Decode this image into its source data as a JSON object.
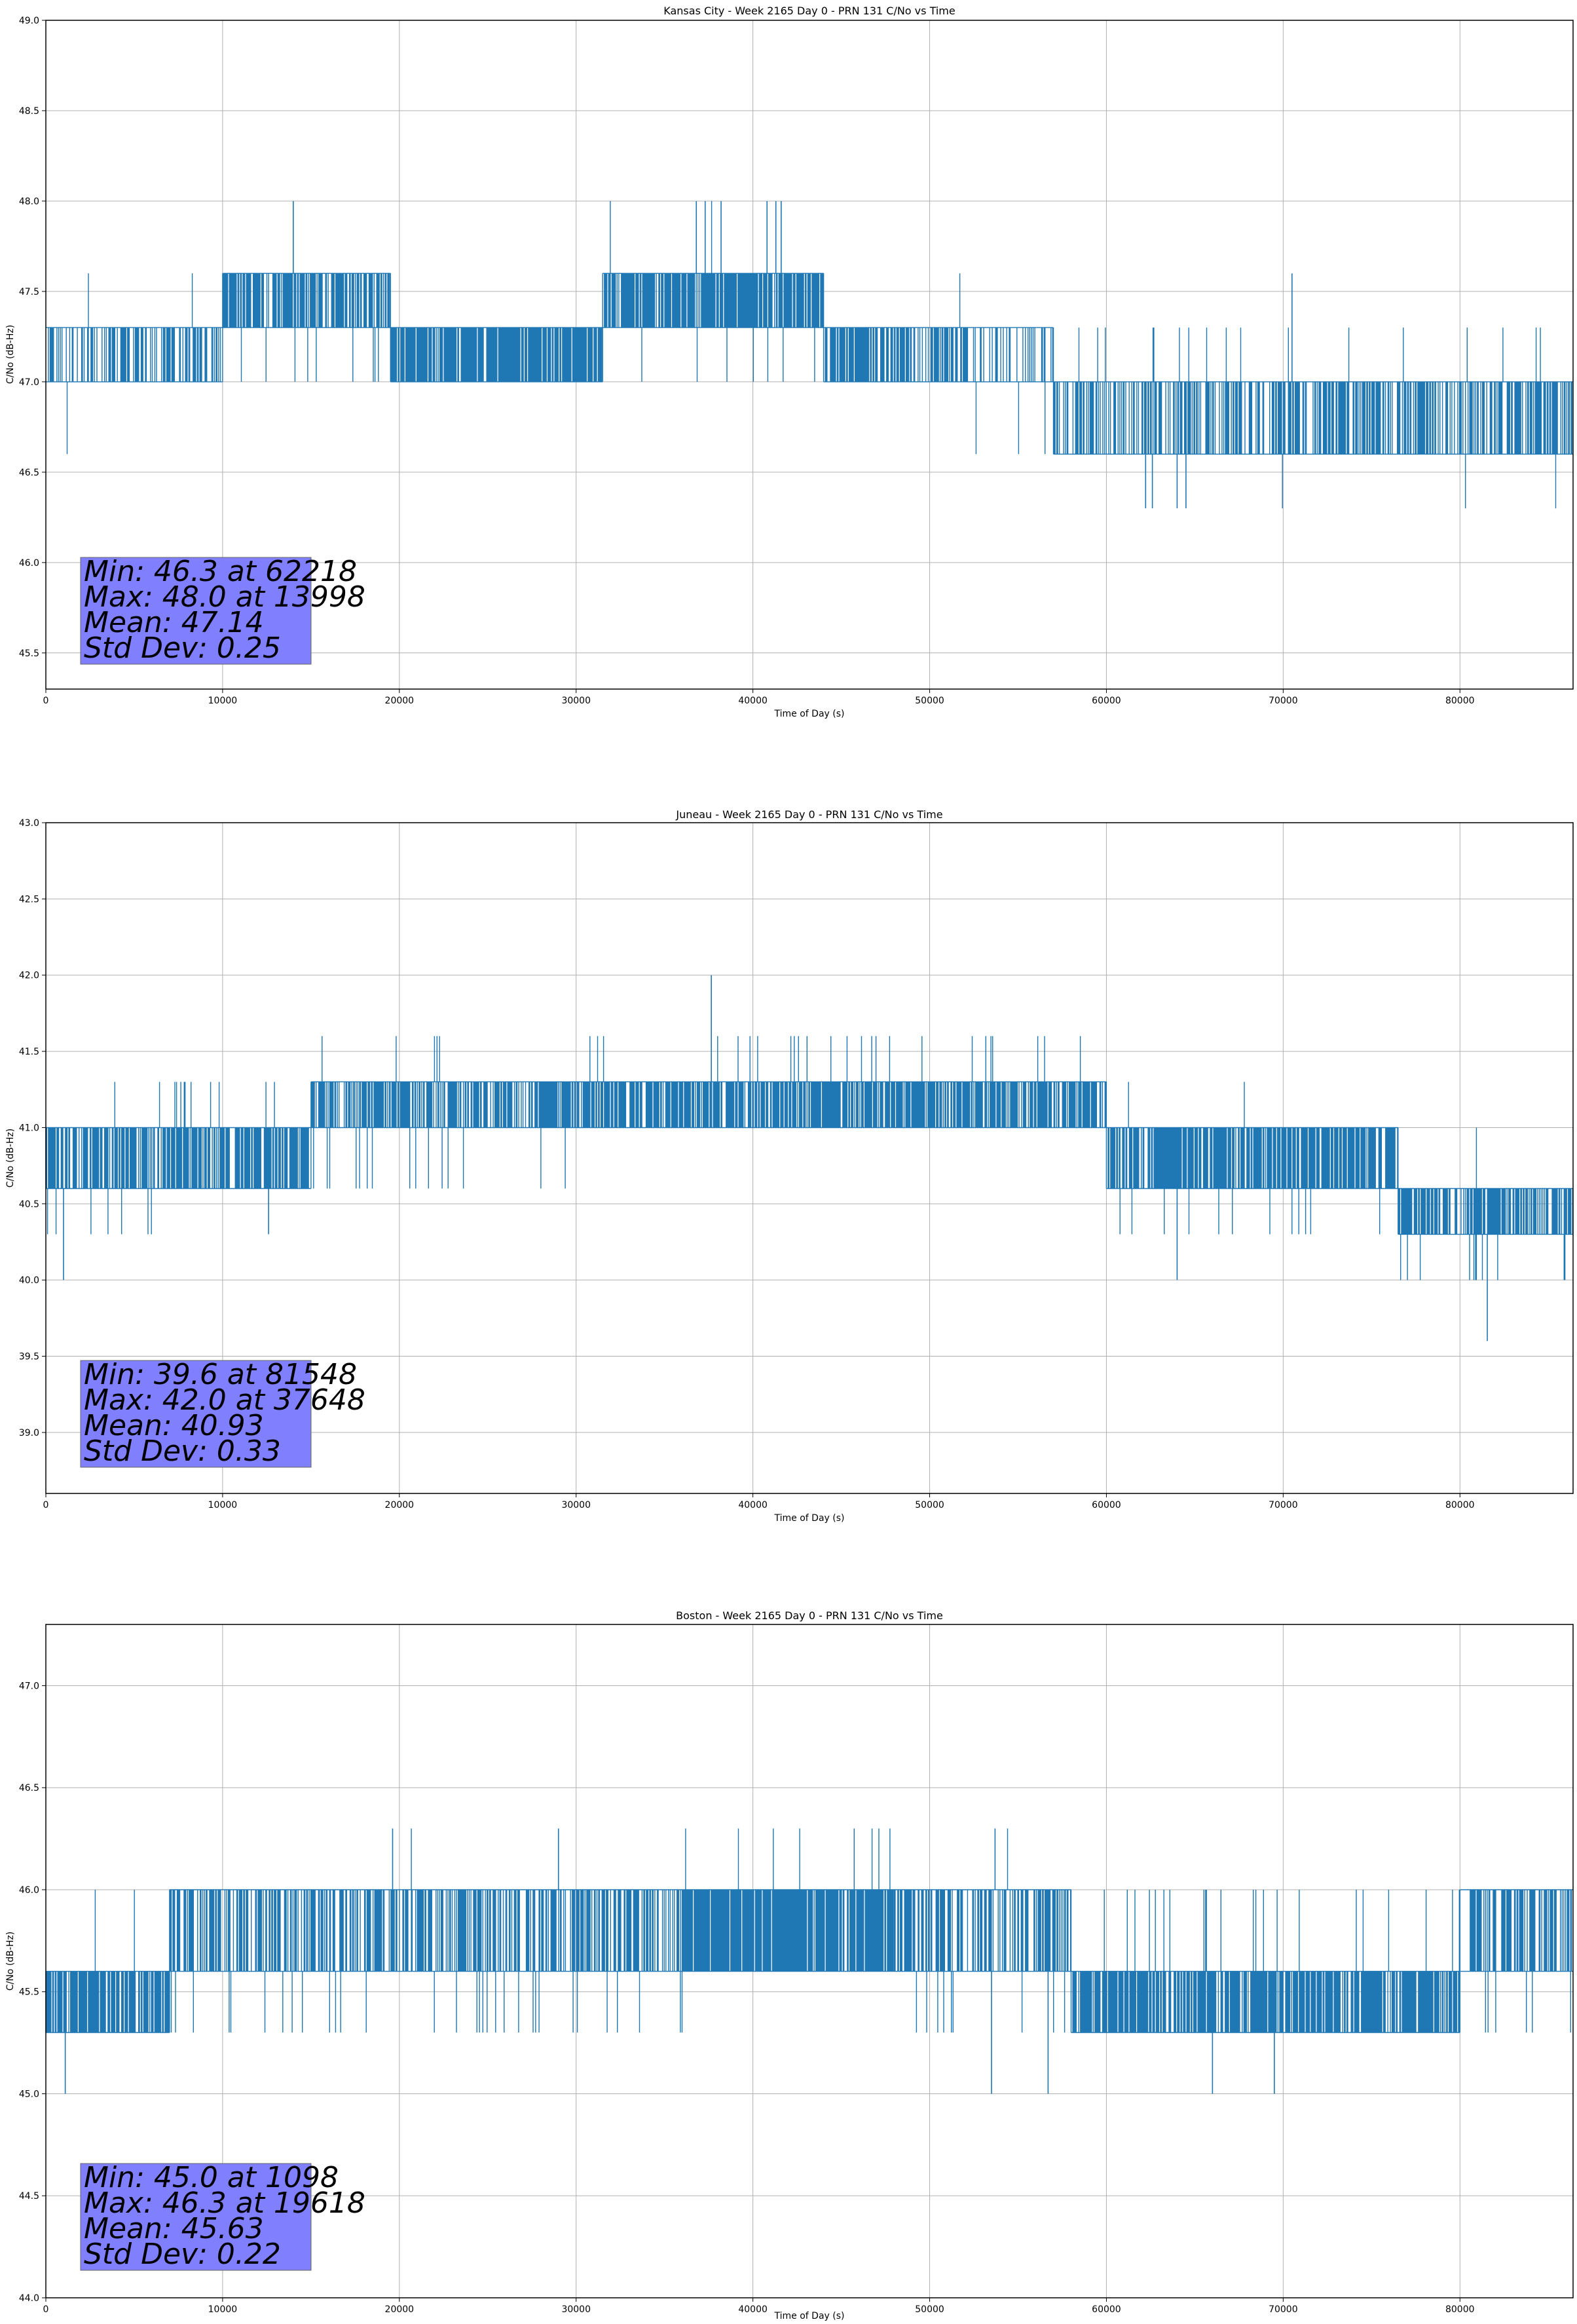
{
  "figure": {
    "background": "#ffffff",
    "line_color": "#1f77b4",
    "grid_color": "#b0b0b0",
    "stats_box_color": "#8080ff"
  },
  "chart_data": [
    {
      "type": "line",
      "title": "Kansas City - Week 2165 Day 0 - PRN 131 C/No vs Time",
      "xlabel": "Time of Day (s)",
      "ylabel": "C/No (dB-Hz)",
      "xlim": [
        0,
        86400
      ],
      "ylim": [
        45.3,
        49.0
      ],
      "xticks": [
        0,
        10000,
        20000,
        30000,
        40000,
        50000,
        60000,
        70000,
        80000
      ],
      "yticks": [
        45.5,
        46.0,
        46.5,
        47.0,
        47.5,
        48.0,
        48.5,
        49.0
      ],
      "grid": true,
      "stats": [
        "Min: 46.3 at 62218",
        "Max: 48.0 at 13998",
        "Mean: 47.14",
        "Std Dev: 0.25"
      ],
      "series": [
        {
          "base_levels": [
            47.0,
            47.3
          ],
          "segments": [
            {
              "x": [
                0,
                10000
              ],
              "lo": 47.0,
              "hi": 47.3,
              "density": 0.45,
              "up": [
                47.6,
                0.12
              ],
              "down": [
                46.6,
                0.03
              ]
            },
            {
              "x": [
                10000,
                19500
              ],
              "lo": 47.3,
              "hi": 47.6,
              "density": 0.75,
              "up": [
                48.0,
                0.01
              ],
              "down": [
                47.0,
                0.35
              ]
            },
            {
              "x": [
                19500,
                31500
              ],
              "lo": 47.0,
              "hi": 47.3,
              "density": 0.85,
              "up": [
                47.6,
                0.03
              ],
              "down": [
                46.6,
                0.0
              ]
            },
            {
              "x": [
                31500,
                44000
              ],
              "lo": 47.3,
              "hi": 47.6,
              "density": 0.85,
              "up": [
                48.0,
                0.06
              ],
              "down": [
                47.0,
                0.25
              ]
            },
            {
              "x": [
                44000,
                52000
              ],
              "lo": 47.0,
              "hi": 47.3,
              "density": 0.7,
              "up": [
                47.6,
                0.03
              ],
              "down": [
                46.6,
                0.05
              ]
            },
            {
              "x": [
                52000,
                57000
              ],
              "lo": 47.0,
              "hi": 47.3,
              "density": 0.4,
              "up": [
                47.6,
                0.0
              ],
              "down": [
                46.6,
                0.35
              ]
            },
            {
              "x": [
                57000,
                86400
              ],
              "lo": 46.6,
              "hi": 47.0,
              "density": 0.6,
              "up": [
                47.3,
                0.35
              ],
              "down": [
                46.3,
                0.02
              ]
            }
          ],
          "spikes": [
            {
              "x": 13998,
              "y": 48.0
            },
            {
              "x": 36800,
              "y": 48.0
            },
            {
              "x": 37300,
              "y": 48.0
            },
            {
              "x": 38200,
              "y": 48.0
            },
            {
              "x": 40800,
              "y": 48.0
            },
            {
              "x": 41300,
              "y": 48.0
            },
            {
              "x": 41600,
              "y": 48.0
            },
            {
              "x": 62218,
              "y": 46.3
            },
            {
              "x": 62600,
              "y": 46.3
            },
            {
              "x": 64000,
              "y": 46.3
            },
            {
              "x": 64500,
              "y": 46.3
            },
            {
              "x": 70500,
              "y": 47.6
            }
          ]
        }
      ]
    },
    {
      "type": "line",
      "title": "Juneau - Week 2165 Day 0 - PRN 131 C/No vs Time",
      "xlabel": "Time of Day (s)",
      "ylabel": "C/No (dB-Hz)",
      "xlim": [
        0,
        86400
      ],
      "ylim": [
        38.6,
        43.0
      ],
      "xticks": [
        0,
        10000,
        20000,
        30000,
        40000,
        50000,
        60000,
        70000,
        80000
      ],
      "yticks": [
        39.0,
        39.5,
        40.0,
        40.5,
        41.0,
        41.5,
        42.0,
        42.5,
        43.0
      ],
      "grid": true,
      "stats": [
        "Min: 39.6 at 81548",
        "Max: 42.0 at 37648",
        "Mean: 40.93",
        "Std Dev: 0.33"
      ],
      "series": [
        {
          "base_levels": [
            40.6,
            41.0,
            41.3
          ],
          "segments": [
            {
              "x": [
                0,
                6000
              ],
              "lo": 40.6,
              "hi": 41.0,
              "density": 0.7,
              "up": [
                41.3,
                0.06
              ],
              "down": [
                40.3,
                0.3
              ]
            },
            {
              "x": [
                6000,
                15000
              ],
              "lo": 40.6,
              "hi": 41.0,
              "density": 0.75,
              "up": [
                41.3,
                0.45
              ],
              "down": [
                40.3,
                0.01
              ]
            },
            {
              "x": [
                15000,
                29000
              ],
              "lo": 41.0,
              "hi": 41.3,
              "density": 0.75,
              "up": [
                41.6,
                0.12
              ],
              "down": [
                40.6,
                0.3
              ]
            },
            {
              "x": [
                29000,
                60000
              ],
              "lo": 41.0,
              "hi": 41.3,
              "density": 0.8,
              "up": [
                41.6,
                0.3
              ],
              "down": [
                40.6,
                0.05
              ]
            },
            {
              "x": [
                60000,
                76500
              ],
              "lo": 40.6,
              "hi": 41.0,
              "density": 0.8,
              "up": [
                41.3,
                0.06
              ],
              "down": [
                40.3,
                0.3
              ]
            },
            {
              "x": [
                76500,
                86400
              ],
              "lo": 40.3,
              "hi": 40.6,
              "density": 0.75,
              "up": [
                41.0,
                0.05
              ],
              "down": [
                40.0,
                0.4
              ]
            }
          ],
          "spikes": [
            {
              "x": 1000,
              "y": 40.0
            },
            {
              "x": 12600,
              "y": 40.3
            },
            {
              "x": 37648,
              "y": 42.0
            },
            {
              "x": 64000,
              "y": 40.0
            },
            {
              "x": 81548,
              "y": 39.6
            }
          ]
        }
      ]
    },
    {
      "type": "line",
      "title": "Boston - Week 2165 Day 0 - PRN 131 C/No vs Time",
      "xlabel": "Time of Day (s)",
      "ylabel": "C/No (dB-Hz)",
      "xlim": [
        0,
        86400
      ],
      "ylim": [
        44.0,
        47.3
      ],
      "xticks": [
        0,
        10000,
        20000,
        30000,
        40000,
        50000,
        60000,
        70000,
        80000
      ],
      "yticks": [
        44.0,
        44.5,
        45.0,
        45.5,
        46.0,
        46.5,
        47.0
      ],
      "grid": true,
      "stats": [
        "Min: 45.0 at 1098",
        "Max: 46.3 at 19618",
        "Mean: 45.63",
        "Std Dev: 0.22"
      ],
      "series": [
        {
          "base_levels": [
            45.3,
            45.6,
            46.0
          ],
          "segments": [
            {
              "x": [
                0,
                7000
              ],
              "lo": 45.3,
              "hi": 45.6,
              "density": 0.8,
              "up": [
                46.0,
                0.12
              ],
              "down": [
                45.0,
                0.0
              ]
            },
            {
              "x": [
                7000,
                36000
              ],
              "lo": 45.6,
              "hi": 46.0,
              "density": 0.6,
              "up": [
                46.3,
                0.01
              ],
              "down": [
                45.3,
                0.45
              ]
            },
            {
              "x": [
                36000,
                48000
              ],
              "lo": 45.6,
              "hi": 46.0,
              "density": 0.9,
              "up": [
                46.3,
                0.25
              ],
              "down": [
                45.3,
                0.05
              ]
            },
            {
              "x": [
                48000,
                58000
              ],
              "lo": 45.6,
              "hi": 46.0,
              "density": 0.55,
              "up": [
                46.3,
                0.03
              ],
              "down": [
                45.3,
                0.35
              ]
            },
            {
              "x": [
                58000,
                80000
              ],
              "lo": 45.3,
              "hi": 45.6,
              "density": 0.8,
              "up": [
                46.0,
                0.35
              ],
              "down": [
                45.0,
                0.0
              ]
            },
            {
              "x": [
                80000,
                86400
              ],
              "lo": 45.6,
              "hi": 46.0,
              "density": 0.55,
              "up": [
                46.0,
                0.0
              ],
              "down": [
                45.3,
                0.45
              ]
            }
          ],
          "spikes": [
            {
              "x": 1098,
              "y": 45.0
            },
            {
              "x": 19618,
              "y": 46.3
            },
            {
              "x": 29000,
              "y": 46.3
            },
            {
              "x": 53500,
              "y": 45.0
            },
            {
              "x": 53700,
              "y": 46.3
            },
            {
              "x": 56700,
              "y": 45.0
            },
            {
              "x": 66000,
              "y": 45.0
            },
            {
              "x": 69500,
              "y": 45.0
            }
          ]
        }
      ]
    }
  ]
}
